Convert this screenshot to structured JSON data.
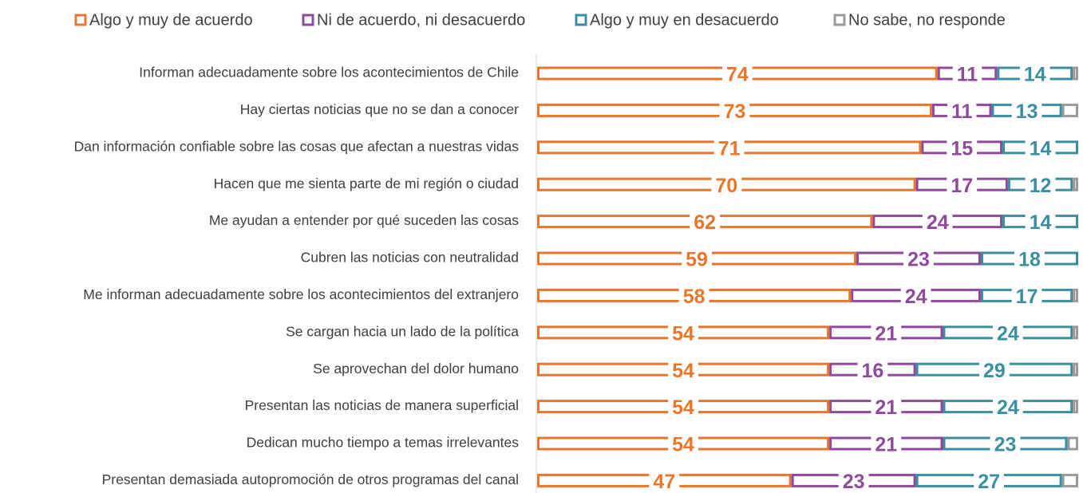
{
  "chart_data": {
    "type": "stacked_bar_horizontal",
    "categories": [
      "Informan adecuadamente sobre los acontecimientos de Chile",
      "Hay ciertas noticias que no se dan a conocer",
      "Dan información confiable sobre las cosas que afectan a nuestras vidas",
      "Hacen que me sienta parte de mi región o ciudad",
      "Me ayudan a entender por qué suceden las cosas",
      "Cubren las noticias con neutralidad",
      "Me informan adecuadamente sobre los acontecimientos del extranjero",
      "Se cargan hacia un lado de la política",
      "Se aprovechan del dolor humano",
      "Presentan las noticias de manera superficial",
      "Dedican mucho tiempo a temas irrelevantes",
      "Presentan demasiada autopromoción de otros programas del canal"
    ],
    "series": [
      {
        "name": "Algo y muy de acuerdo",
        "color": "#e8772e",
        "values": [
          74,
          73,
          71,
          70,
          62,
          59,
          58,
          54,
          54,
          54,
          54,
          47
        ]
      },
      {
        "name": "Ni de acuerdo, ni desacuerdo",
        "color": "#8f4a9c",
        "values": [
          11,
          11,
          15,
          17,
          24,
          23,
          24,
          21,
          16,
          21,
          21,
          23
        ]
      },
      {
        "name": "Algo y muy en desacuerdo",
        "color": "#3a8fa1",
        "values": [
          14,
          13,
          14,
          12,
          14,
          18,
          17,
          24,
          29,
          24,
          23,
          27
        ]
      },
      {
        "name": "No sabe, no responde",
        "color": "#9a9a9a",
        "values": [
          1,
          3,
          0,
          1,
          0,
          0,
          1,
          1,
          1,
          1,
          2,
          3
        ]
      }
    ],
    "xlim": [
      0,
      100
    ],
    "legend": "top"
  }
}
